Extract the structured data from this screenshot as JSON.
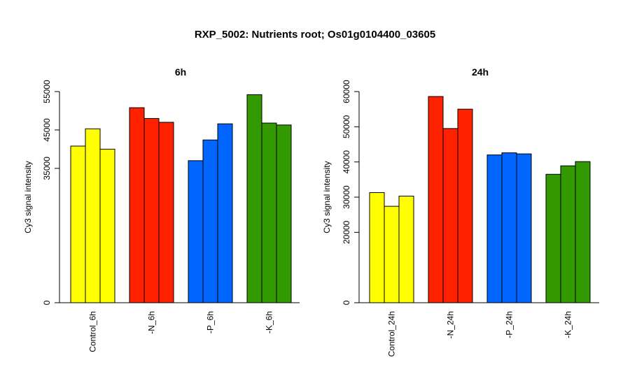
{
  "figure": {
    "title": "RXP_5002: Nutrients root; Os01g0104400_03605"
  },
  "chart_data": [
    {
      "type": "bar",
      "title": "6h",
      "xlabel": "",
      "ylabel": "Cy3 signal intensity",
      "ylim": [
        0,
        55000
      ],
      "yticks": [
        {
          "value": 0,
          "label": "0"
        },
        {
          "value": 35000,
          "label": "35000"
        },
        {
          "value": 45000,
          "label": "45000"
        },
        {
          "value": 55000,
          "label": "55000"
        }
      ],
      "grid": false,
      "groups": [
        {
          "name": "Control_6h",
          "color": "#ffff00",
          "values": [
            40800,
            45300,
            40000
          ]
        },
        {
          "name": "-N_6h",
          "color": "#ff2200",
          "values": [
            50800,
            48000,
            47000
          ]
        },
        {
          "name": "-P_6h",
          "color": "#0066ff",
          "values": [
            37000,
            42400,
            46600
          ]
        },
        {
          "name": "-K_6h",
          "color": "#339900",
          "values": [
            54200,
            46800,
            46300
          ]
        }
      ]
    },
    {
      "type": "bar",
      "title": "24h",
      "xlabel": "",
      "ylabel": "Cy3 signal intensity",
      "ylim": [
        0,
        60000
      ],
      "yticks": [
        {
          "value": 0,
          "label": "0"
        },
        {
          "value": 20000,
          "label": "20000"
        },
        {
          "value": 30000,
          "label": "30000"
        },
        {
          "value": 40000,
          "label": "40000"
        },
        {
          "value": 50000,
          "label": "50000"
        },
        {
          "value": 60000,
          "label": "60000"
        }
      ],
      "grid": false,
      "groups": [
        {
          "name": "Control_24h",
          "color": "#ffff00",
          "values": [
            31300,
            27400,
            30300
          ]
        },
        {
          "name": "-N_24h",
          "color": "#ff2200",
          "values": [
            58600,
            49500,
            55000
          ]
        },
        {
          "name": "-P_24h",
          "color": "#0066ff",
          "values": [
            42000,
            42600,
            42300
          ]
        },
        {
          "name": "-K_24h",
          "color": "#339900",
          "values": [
            36500,
            38900,
            40100
          ]
        }
      ]
    }
  ]
}
